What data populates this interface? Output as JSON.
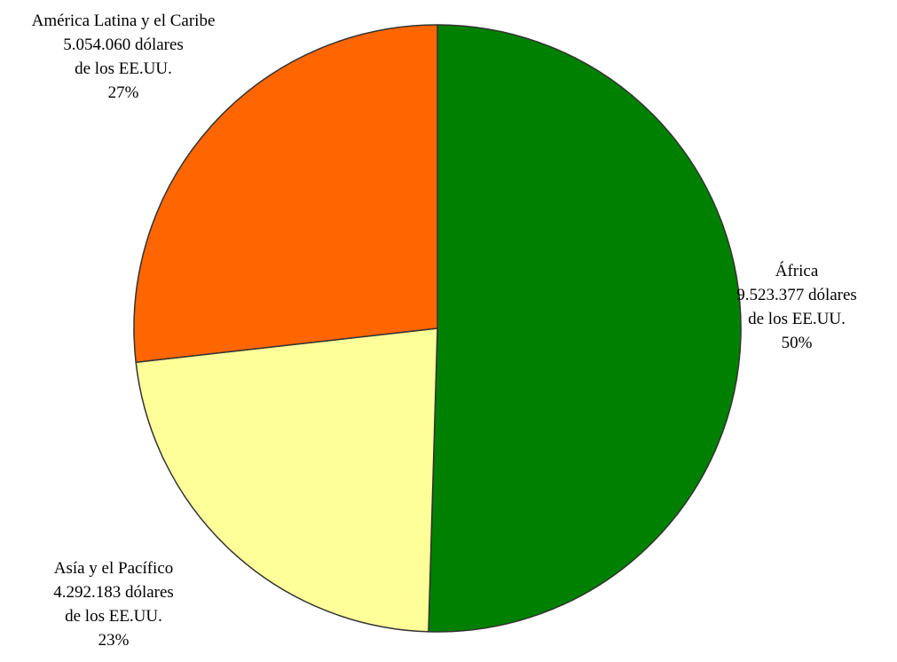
{
  "chart_data": {
    "type": "pie",
    "title": "",
    "slices": [
      {
        "name": "África",
        "amount": "9.523.377 dólares",
        "unit": "de los EE.UU.",
        "value": 9523377,
        "percent": "50%",
        "color": "#008000"
      },
      {
        "name": "Asía y el Pacífico",
        "amount": "4.292.183 dólares",
        "unit": "de los EE.UU.",
        "value": 4292183,
        "percent": "23%",
        "color": "#FFFF99"
      },
      {
        "name": "América Latina y el Caribe",
        "amount": "5.054.060 dólares",
        "unit": "de los EE.UU.",
        "value": 5054060,
        "percent": "27%",
        "color": "#FF6600"
      }
    ],
    "start_angle_deg": 0,
    "direction": "clockwise",
    "legend": "none"
  }
}
